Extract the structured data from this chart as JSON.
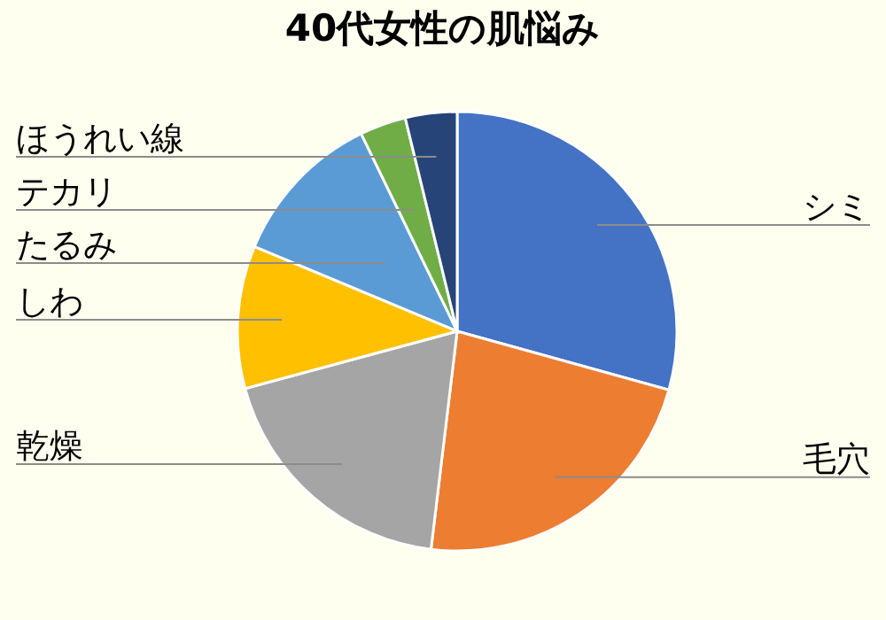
{
  "chart_data": {
    "type": "pie",
    "title": "40代女性の肌悩み",
    "categories": [
      "シミ",
      "毛穴",
      "乾燥",
      "しわ",
      "たるみ",
      "テカリ",
      "ほうれい線"
    ],
    "values": [
      29.3,
      22.6,
      18.9,
      10.5,
      11.5,
      3.4,
      3.8
    ],
    "colors": [
      "#4472c4",
      "#ed7d31",
      "#a5a5a5",
      "#ffc000",
      "#5b9bd5",
      "#70ad47",
      "#264478"
    ],
    "legend": false
  }
}
